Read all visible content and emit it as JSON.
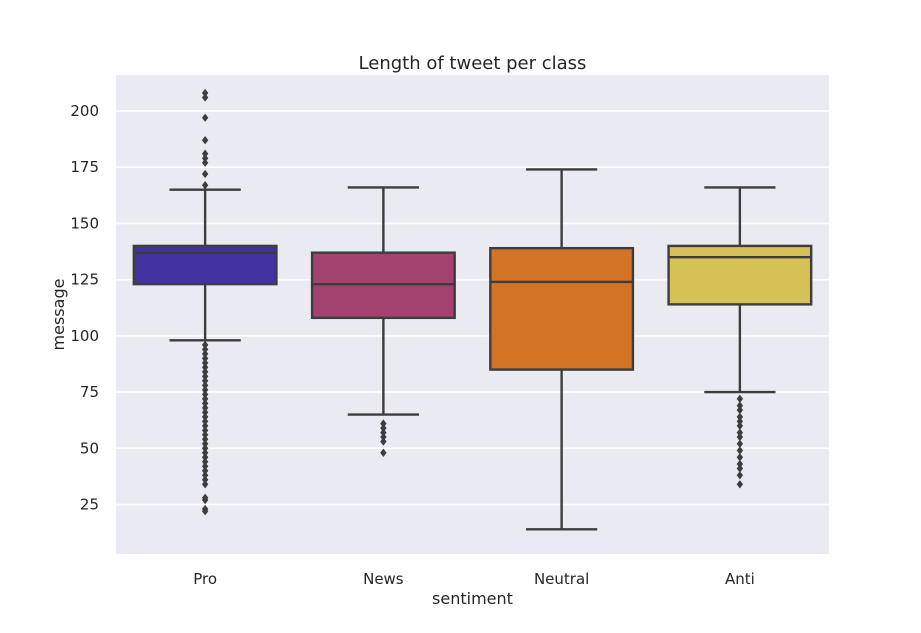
{
  "chart_data": {
    "type": "box",
    "title": "Length of tweet per class",
    "xlabel": "sentiment",
    "ylabel": "message",
    "categories": [
      "Pro",
      "News",
      "Neutral",
      "Anti"
    ],
    "yticks": [
      25,
      50,
      75,
      100,
      125,
      150,
      175,
      200
    ],
    "ylim": [
      3,
      216
    ],
    "grid": true,
    "colors": {
      "background": "#eaeaf2",
      "grid": "#ffffff",
      "edge": "#3d3d3d"
    },
    "boxes": [
      {
        "category": "Pro",
        "color": "#4233a0",
        "whisker_low": 98,
        "q1": 123,
        "median": 137,
        "q3": 140,
        "whisker_high": 165,
        "outliers_high": [
          167,
          172,
          177,
          179,
          181,
          187,
          197,
          206,
          208
        ],
        "outliers_low": [
          22,
          23,
          27,
          28,
          34,
          36,
          38,
          40,
          42,
          44,
          46,
          48,
          50,
          52,
          54,
          56,
          58,
          60,
          62,
          64,
          66,
          68,
          70,
          72,
          74,
          76,
          78,
          80,
          82,
          84,
          86,
          88,
          90,
          92,
          94,
          96
        ]
      },
      {
        "category": "News",
        "color": "#a3416f",
        "whisker_low": 65,
        "q1": 108,
        "median": 123,
        "q3": 137,
        "whisker_high": 166,
        "outliers_high": [],
        "outliers_low": [
          48,
          53,
          55,
          57,
          59,
          61
        ]
      },
      {
        "category": "Neutral",
        "color": "#d27424",
        "whisker_low": 14,
        "q1": 85,
        "median": 124,
        "q3": 139,
        "whisker_high": 174,
        "outliers_high": [],
        "outliers_low": []
      },
      {
        "category": "Anti",
        "color": "#d6c157",
        "whisker_low": 75,
        "q1": 114,
        "median": 135,
        "q3": 140,
        "whisker_high": 166,
        "outliers_high": [],
        "outliers_low": [
          34,
          38,
          41,
          43,
          46,
          49,
          52,
          55,
          57,
          60,
          62,
          64,
          67,
          69,
          72
        ]
      }
    ]
  }
}
